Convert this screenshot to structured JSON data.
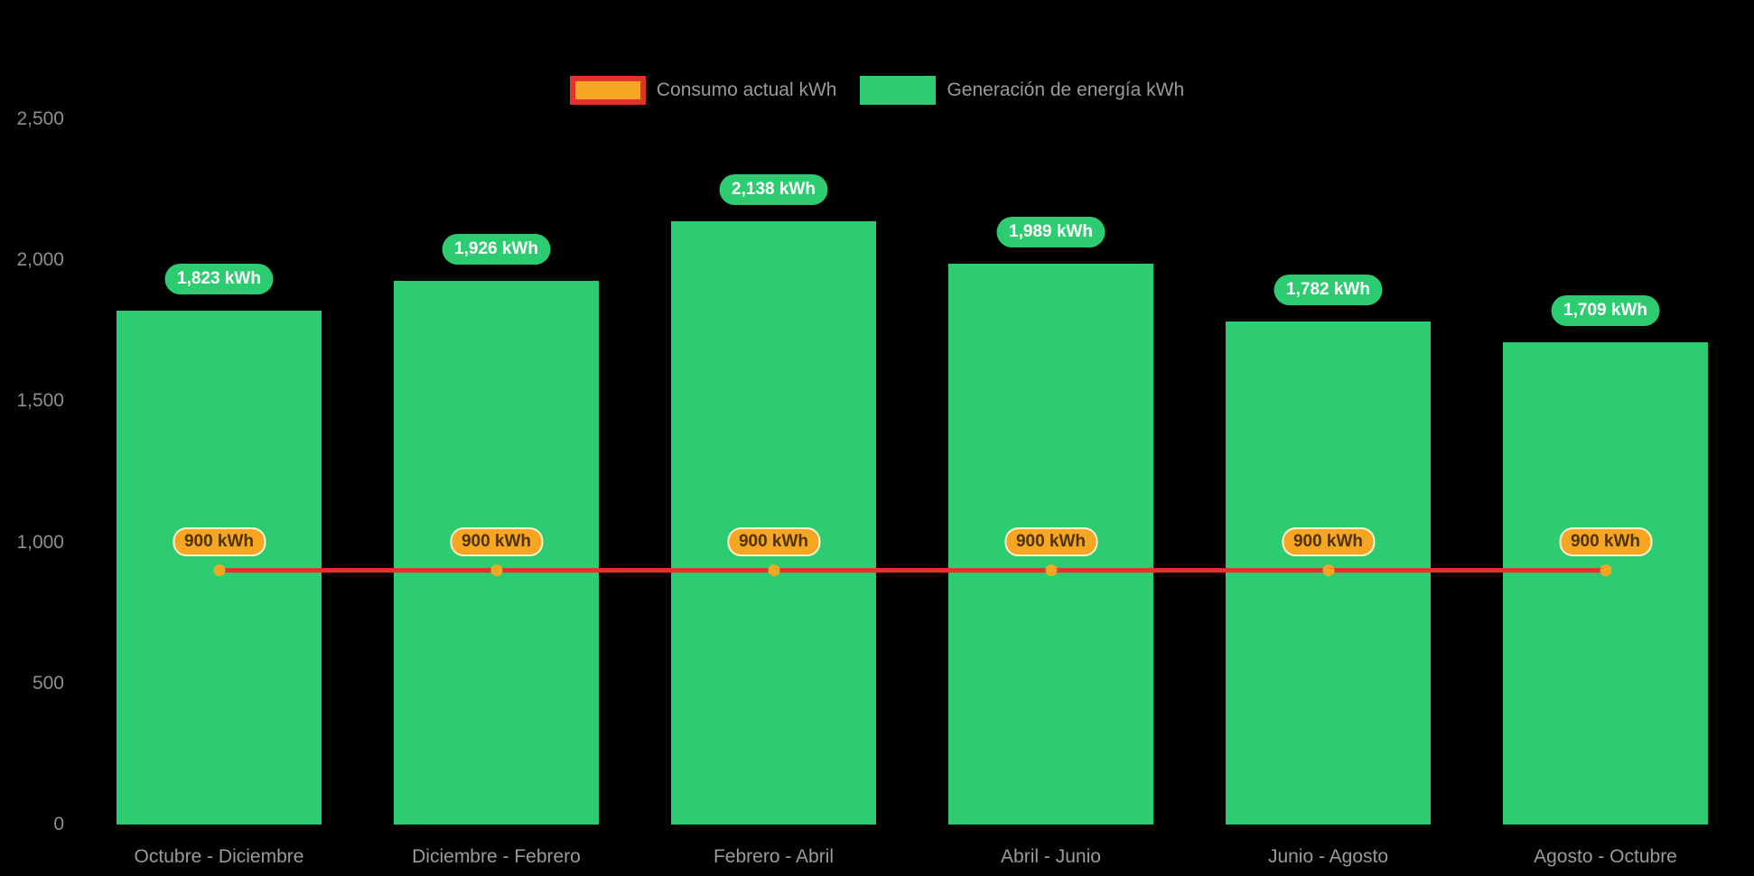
{
  "chart_data": {
    "type": "bar",
    "title": "",
    "categories": [
      "Octubre - Diciembre",
      "Diciembre - Febrero",
      "Febrero - Abril",
      "Abril - Junio",
      "Junio - Agosto",
      "Agosto - Octubre"
    ],
    "series": [
      {
        "name": "Consumo actual kWh",
        "type": "line",
        "color": "#e0332c",
        "marker_color": "#f6a623",
        "label_bg": "#f6a623",
        "label_text_color": "#4d3305",
        "values": [
          900,
          900,
          900,
          900,
          900,
          900
        ],
        "data_labels": [
          "900 kWh",
          "900 kWh",
          "900 kWh",
          "900 kWh",
          "900 kWh",
          "900 kWh"
        ]
      },
      {
        "name": "Generación de energía kWh",
        "type": "bar",
        "color": "#2ecc71",
        "label_bg": "#2ecc71",
        "label_text_color": "#ffffff",
        "values": [
          1823,
          1926,
          2138,
          1989,
          1782,
          1709
        ],
        "data_labels": [
          "1,823 kWh",
          "1,926 kWh",
          "2,138 kWh",
          "1,989 kWh",
          "1,782 kWh",
          "1,709 kWh"
        ]
      }
    ],
    "y_axis": {
      "min": 0,
      "max": 2500,
      "tick_values": [
        0,
        500,
        1000,
        1500,
        2000,
        2500
      ],
      "tick_labels": [
        "0",
        "500",
        "1,000",
        "1,500",
        "2,000",
        "2,500"
      ]
    },
    "grid": false,
    "legend_position": "top-center",
    "background": "#000000",
    "axis_text_color": "#8f8f8f"
  }
}
